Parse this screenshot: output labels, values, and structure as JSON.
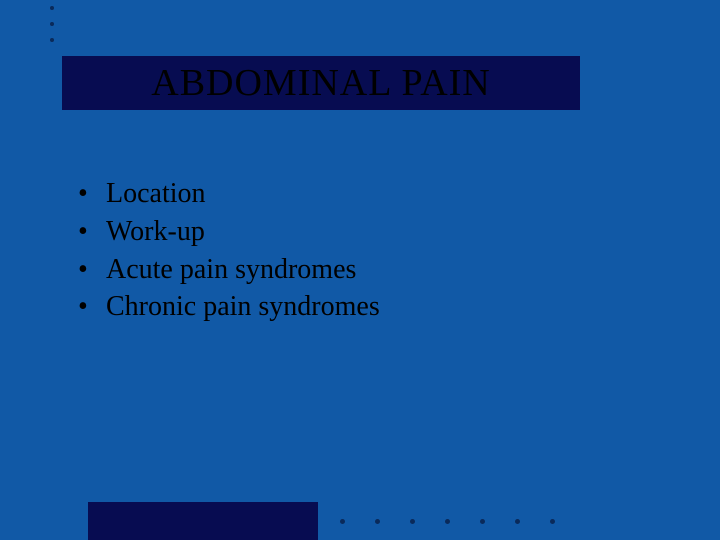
{
  "slide": {
    "background_color": "#1159a6",
    "title_bar_color": "#070c51",
    "accent_bar_color": "#070c51",
    "dot_color": "#0a2a5a",
    "text_color": "#000000",
    "title": "ABDOMINAL PAIN",
    "title_fontsize": 38,
    "bullet_fontsize": 28,
    "bullets": [
      "Location",
      "Work-up",
      "Acute pain syndromes",
      "Chronic pain syndromes"
    ]
  }
}
